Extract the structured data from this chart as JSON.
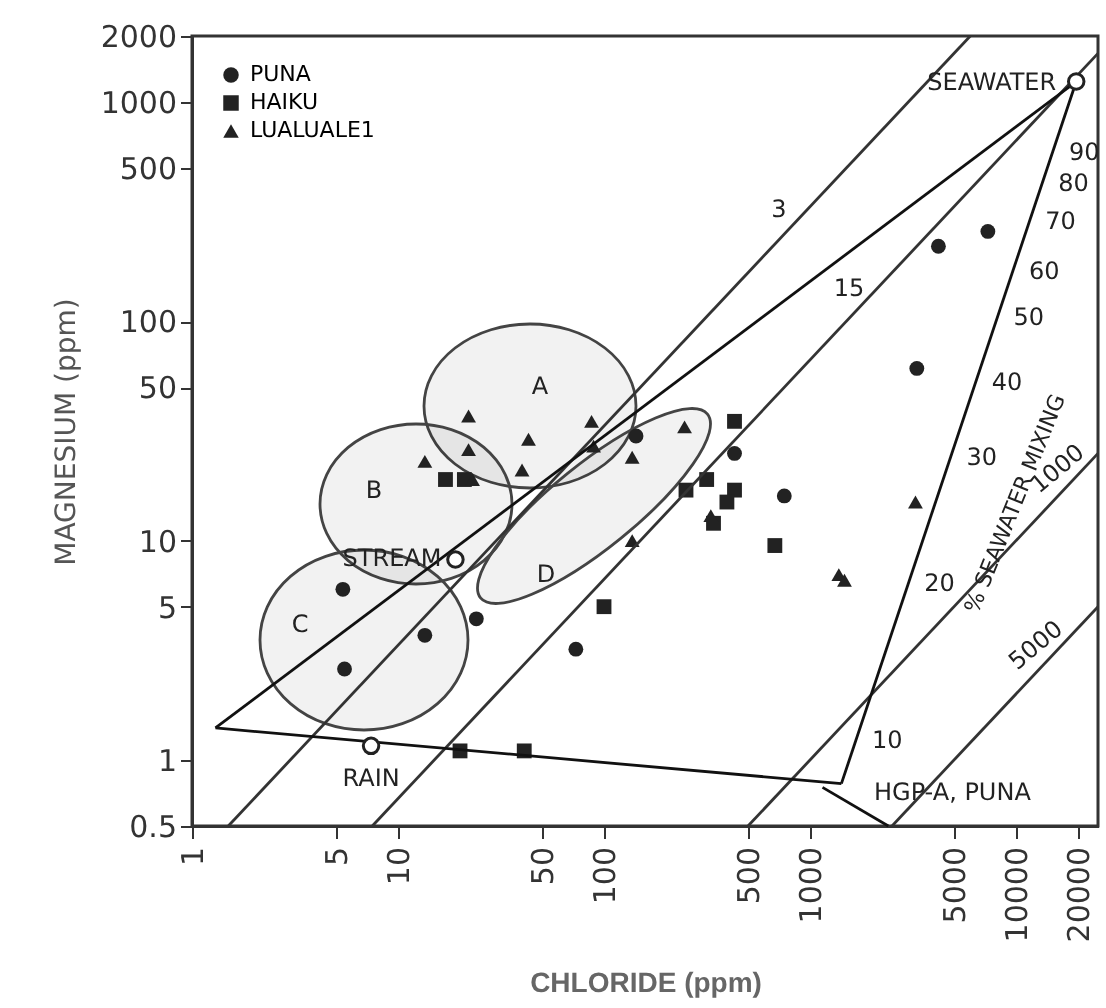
{
  "chart_data": {
    "type": "scatter",
    "xlabel": "CHLORIDE (ppm)",
    "ylabel": "MAGNESIUM (ppm)",
    "log": "xy",
    "xlim": [
      1,
      25000
    ],
    "ylim": [
      0.5,
      2000
    ],
    "xticks": [
      1,
      5,
      10,
      50,
      100,
      500,
      1000,
      5000,
      10000,
      20000
    ],
    "yticks": [
      0.5,
      1,
      5,
      10,
      50,
      100,
      500,
      1000,
      2000
    ],
    "legend": "top left",
    "grid": false,
    "series": [
      {
        "name": "PUNA",
        "marker": "circle",
        "color": "#222222",
        "x": [
          5.4,
          5.5,
          13.5,
          24,
          73,
          750,
          430,
          143,
          4200,
          7300,
          3300
        ],
        "values": [
          6,
          2.6,
          3.7,
          4.4,
          3.2,
          16,
          25,
          30,
          220,
          257,
          61
        ]
      },
      {
        "name": "HAIKU",
        "marker": "square",
        "color": "#222222",
        "x": [
          17,
          21,
          430,
          250,
          315,
          430,
          395,
          340,
          675,
          100,
          20,
          41
        ],
        "values": [
          19,
          19,
          35,
          17,
          19,
          17,
          15,
          12,
          9.5,
          5,
          1.1,
          1.1
        ]
      },
      {
        "name": "LUALUALE1",
        "marker": "triangle",
        "color": "#222222",
        "x": [
          22,
          13.5,
          22,
          43,
          40,
          87,
          89,
          137,
          246,
          137,
          330,
          23,
          3250,
          1380,
          1470
        ],
        "values": [
          37,
          23,
          26,
          29,
          21,
          35,
          27,
          24,
          33,
          10,
          13,
          19,
          15,
          7,
          6.6
        ]
      },
      {
        "marker": "circle",
        "color": "#ffffff",
        "x": [
          19600,
          19,
          7.4
        ],
        "values": [
          1240,
          8.2,
          1.16
        ]
      },
      {
        "type": "line",
        "color": "#333333",
        "x": [
          1.5,
          6000
        ],
        "values": [
          0.5,
          2000
        ]
      },
      {
        "type": "line",
        "color": "#333333",
        "x": [
          7.5,
          25000
        ],
        "values": [
          0.5,
          1667
        ]
      },
      {
        "type": "line",
        "color": "#333333",
        "x": [
          500,
          25000
        ],
        "values": [
          0.5,
          25
        ]
      },
      {
        "type": "line",
        "color": "#333333",
        "x": [
          2500,
          25000
        ],
        "values": [
          0.5,
          5
        ]
      },
      {
        "type": "line",
        "color": "#111111",
        "x": [
          1.3,
          19600
        ],
        "values": [
          1.4,
          1240
        ]
      },
      {
        "type": "line",
        "color": "#111111",
        "x": [
          1.3,
          1420
        ],
        "values": [
          1.4,
          0.78
        ]
      },
      {
        "type": "line",
        "color": "#111111",
        "x": [
          1420,
          19600
        ],
        "values": [
          0.78,
          1240
        ]
      },
      {
        "type": "line",
        "color": "#111111",
        "x": [
          1150,
          2400
        ],
        "values": [
          0.75,
          0.5
        ]
      }
    ],
    "annotations": [
      {
        "text": "3",
        "x": 807,
        "y": 269
      },
      {
        "text": "15",
        "x": 1770,
        "y": 118
      },
      {
        "text": "1000",
        "x": 20000,
        "y": 20
      },
      {
        "text": "5000",
        "x": 15700,
        "y": 3.14
      },
      {
        "text": "SEAWATER",
        "x": 19600,
        "y": 1240
      },
      {
        "text": "STREAM",
        "x": 19,
        "y": 8.2
      },
      {
        "text": "RAIN",
        "x": 7.4,
        "y": 1.16
      },
      {
        "text": "90",
        "x": 15100,
        "y": 594
      },
      {
        "text": "80",
        "x": 13400,
        "y": 426
      },
      {
        "text": "70",
        "x": 11600,
        "y": 286
      },
      {
        "text": "60",
        "x": 9660,
        "y": 170
      },
      {
        "text": "50",
        "x": 8130,
        "y": 105
      },
      {
        "text": "40",
        "x": 6370,
        "y": 53
      },
      {
        "text": "30",
        "x": 4810,
        "y": 24
      },
      {
        "text": "20",
        "x": 3000,
        "y": 6.4
      },
      {
        "text": "10",
        "x": 1670,
        "y": 1.23
      },
      "HGP-A, PUNA",
      "A",
      "B",
      "C",
      "D",
      "% SEAWATER MIXING"
    ]
  }
}
